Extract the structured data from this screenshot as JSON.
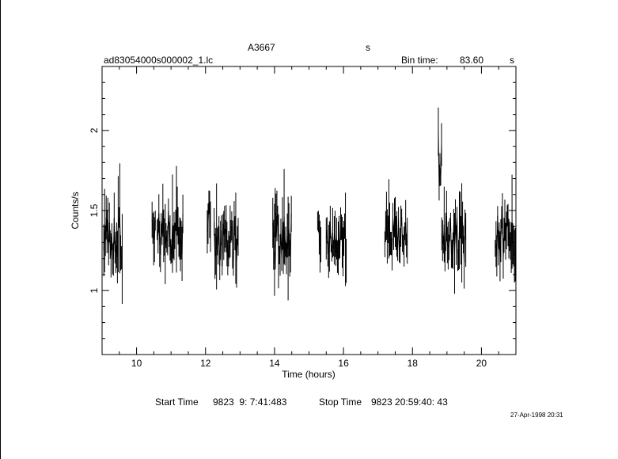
{
  "header": {
    "object": "A3667",
    "object_unit": "s",
    "filename": "ad83054000s000002_1.lc",
    "bin_time_label": "Bin time:",
    "bin_time_value": "83.60",
    "bin_time_unit": "s"
  },
  "footer": {
    "start_label": "Start Time",
    "start_value": "9823  9: 7:41:483",
    "stop_label": "Stop Time",
    "stop_value": "9823 20:59:40: 43",
    "date_stamp": "27-Apr-1998 20:31"
  },
  "chart_data": {
    "type": "line",
    "xlabel": "Time (hours)",
    "ylabel": "Counts/s",
    "xlim": [
      9.0,
      21.0
    ],
    "ylim": [
      0.6,
      2.4
    ],
    "xticks_major": [
      10,
      12,
      14,
      16,
      18,
      20
    ],
    "yticks_major": [
      1,
      1.5,
      2
    ],
    "grid": false,
    "segments": [
      {
        "start": 9.05,
        "end": 9.6,
        "center": 1.33,
        "spread": 0.14,
        "seed": 3
      },
      {
        "start": 10.45,
        "end": 10.55,
        "center": 1.38,
        "spread": 0.08,
        "seed": 5
      },
      {
        "start": 10.6,
        "end": 11.35,
        "center": 1.36,
        "spread": 0.16,
        "seed": 7
      },
      {
        "start": 12.05,
        "end": 12.15,
        "center": 1.5,
        "spread": 0.25,
        "seed": 9
      },
      {
        "start": 12.25,
        "end": 12.95,
        "center": 1.3,
        "spread": 0.16,
        "seed": 11
      },
      {
        "start": 13.95,
        "end": 14.05,
        "center": 1.4,
        "spread": 0.15,
        "seed": 13
      },
      {
        "start": 14.0,
        "end": 14.5,
        "center": 1.33,
        "spread": 0.15,
        "seed": 15
      },
      {
        "start": 15.25,
        "end": 15.35,
        "center": 1.35,
        "spread": 0.1,
        "seed": 17
      },
      {
        "start": 15.5,
        "end": 16.1,
        "center": 1.3,
        "spread": 0.13,
        "seed": 19
      },
      {
        "start": 17.2,
        "end": 17.85,
        "center": 1.35,
        "spread": 0.13,
        "seed": 21
      },
      {
        "start": 18.75,
        "end": 18.85,
        "center": 1.6,
        "spread": 0.45,
        "seed": 23
      },
      {
        "start": 18.85,
        "end": 19.55,
        "center": 1.32,
        "spread": 0.16,
        "seed": 25
      },
      {
        "start": 20.4,
        "end": 21.0,
        "center": 1.33,
        "spread": 0.15,
        "seed": 27
      }
    ]
  }
}
